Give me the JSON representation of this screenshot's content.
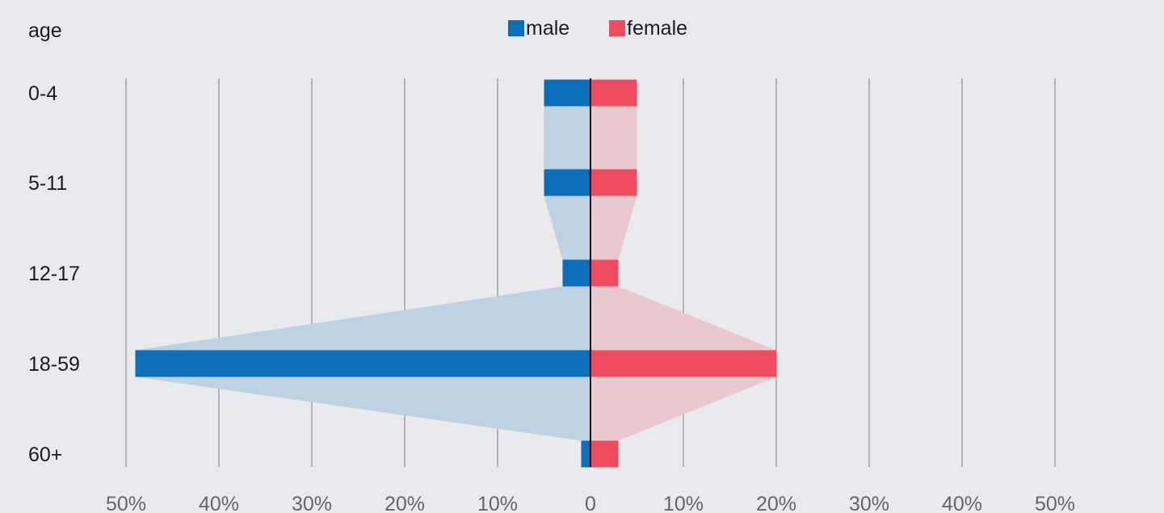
{
  "chart_data": {
    "type": "bar",
    "subtype": "population-pyramid",
    "y_axis_title": "age",
    "categories": [
      "0-4",
      "5-11",
      "12-17",
      "18-59",
      "60+"
    ],
    "series": [
      {
        "name": "male",
        "values": [
          5,
          5,
          3,
          49,
          1
        ],
        "color": "#0a6fb8",
        "area_color": "#bed2e2"
      },
      {
        "name": "female",
        "values": [
          5,
          5,
          3,
          20,
          3
        ],
        "color": "#ef4c60",
        "area_color": "#e9c8d0"
      }
    ],
    "x_tick_labels": [
      "50%",
      "40%",
      "30%",
      "20%",
      "10%",
      "0",
      "10%",
      "20%",
      "30%",
      "40%",
      "50%"
    ],
    "x_tick_values": [
      -50,
      -40,
      -30,
      -20,
      -10,
      0,
      10,
      20,
      30,
      40,
      50
    ],
    "xlim": [
      -50,
      50
    ],
    "grid": true,
    "legend_position": "top-center",
    "colors": {
      "background": "#e9eaee",
      "grid": "#b5b5b5",
      "center_line": "#111111"
    }
  }
}
